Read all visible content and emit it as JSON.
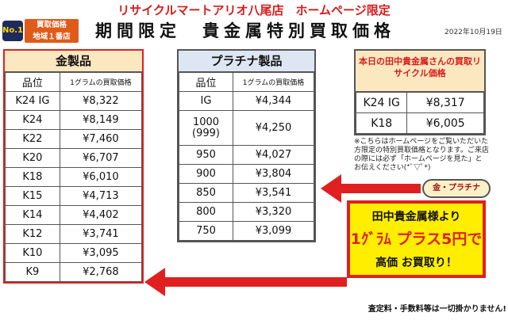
{
  "header": {
    "title": "リサイクルマートアリオ八尾店　ホームページ限定",
    "main_title": "期間限定　貴金属特別買取価格",
    "date": "2022年10月19日",
    "badge_no1": "No.1",
    "badge_line1": "買取価格",
    "badge_line2": "地域１番店"
  },
  "gold": {
    "title": "金製品",
    "col_purity": "品位",
    "col_price": "1グラムの買取価格",
    "rows": [
      {
        "purity": "K24 IG",
        "price": "¥8,322"
      },
      {
        "purity": "K24",
        "price": "¥8,149"
      },
      {
        "purity": "K22",
        "price": "¥7,460"
      },
      {
        "purity": "K20",
        "price": "¥6,707"
      },
      {
        "purity": "K18",
        "price": "¥6,010"
      },
      {
        "purity": "K15",
        "price": "¥4,713"
      },
      {
        "purity": "K14",
        "price": "¥4,402"
      },
      {
        "purity": "K12",
        "price": "¥3,741"
      },
      {
        "purity": "K10",
        "price": "¥3,095"
      },
      {
        "purity": "K9",
        "price": "¥2,768"
      }
    ]
  },
  "platinum": {
    "title": "プラチナ製品",
    "col_purity": "品位",
    "col_price": "1グラムの買取価格",
    "rows": [
      {
        "purity": "IG",
        "price": "¥4,344"
      },
      {
        "purity": "1000\n(999)",
        "price": "¥4,250"
      },
      {
        "purity": "950",
        "price": "¥4,027"
      },
      {
        "purity": "900",
        "price": "¥3,804"
      },
      {
        "purity": "850",
        "price": "¥3,541"
      },
      {
        "purity": "800",
        "price": "¥3,320"
      },
      {
        "purity": "750",
        "price": "¥3,099"
      }
    ]
  },
  "today": {
    "title": "本日の田中貴金属さんの買取リサイクル価格",
    "rows": [
      {
        "label": "K24 IG",
        "price": "¥8,317"
      },
      {
        "label": "K18",
        "price": "¥6,005"
      }
    ]
  },
  "note": "※こちらはホームページをご覧いただいた方限定の特別買取価格となります。ご来店の際には必ず「ホームページを見た」とお伝えください(*ﾟ▽ﾟ*)",
  "pill": "金・プラチナ",
  "promo": {
    "line1": "田中貴金属様より",
    "line2": "1ｸﾞﾗﾑ プラス5円で",
    "line3": "高価 お買取り！"
  },
  "footer": "査定料・手数料等は一切掛かりません!",
  "colors": {
    "accent_red": "#e02020",
    "title_red": "#d81b1b",
    "gold_header": "#fce8c0",
    "platinum_header": "#dde6f2",
    "promo_yellow": "#ffee00"
  }
}
